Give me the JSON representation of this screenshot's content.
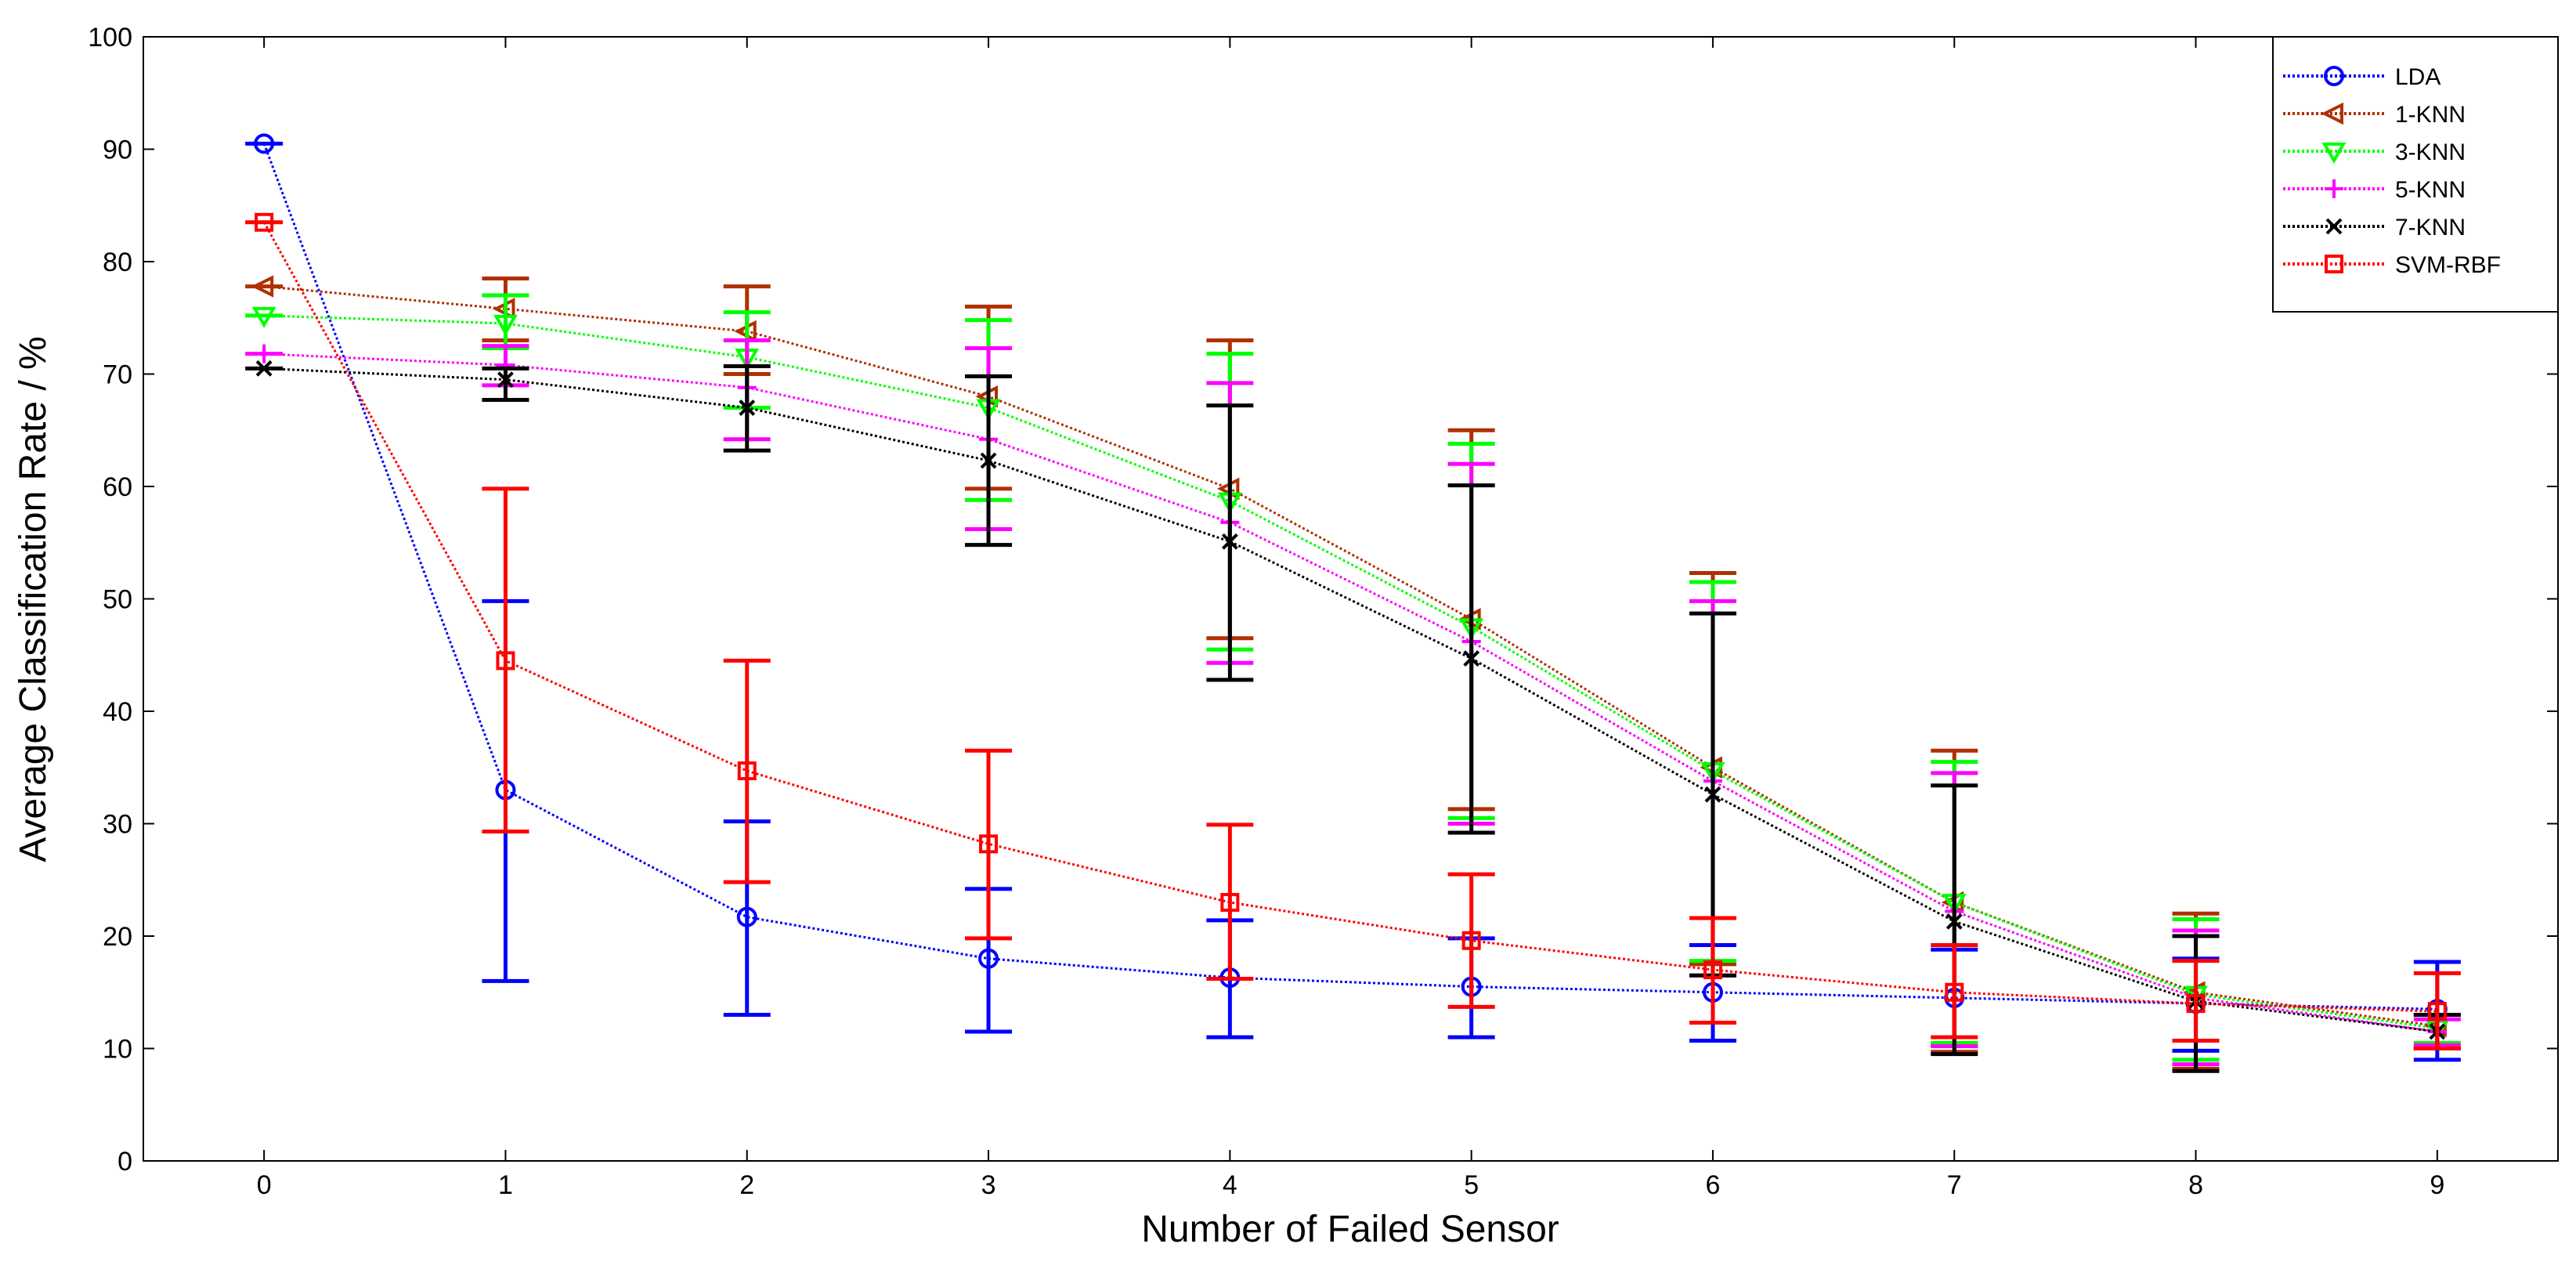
{
  "chart_data": {
    "type": "line",
    "xlabel": "Number of Failed Sensor",
    "ylabel": "Average Classification Rate / %",
    "xlim": [
      -0.5,
      9.5
    ],
    "ylim": [
      0,
      100
    ],
    "x_ticks": [
      0,
      1,
      2,
      3,
      4,
      5,
      6,
      7,
      8,
      9
    ],
    "y_ticks": [
      0,
      10,
      20,
      30,
      40,
      50,
      60,
      70,
      80,
      90,
      100
    ],
    "grid": false,
    "legend_position": "top-right",
    "x": [
      0,
      1,
      2,
      3,
      4,
      5,
      6,
      7,
      8,
      9
    ],
    "series": [
      {
        "name": "LDA",
        "color": "#0000ff",
        "marker": "circle",
        "values": [
          90.5,
          33,
          21.7,
          18,
          16.3,
          15.5,
          15,
          14.5,
          14,
          13.5
        ],
        "error_low": [
          90.5,
          16,
          13,
          11.5,
          11,
          11,
          10.7,
          10.3,
          9.8,
          9
        ],
        "error_high": [
          90.5,
          49.8,
          30.2,
          24.2,
          21.4,
          19.8,
          19.2,
          18.8,
          18,
          17.7
        ]
      },
      {
        "name": "1-KNN",
        "color": "#b03000",
        "marker": "triangle-left",
        "values": [
          77.8,
          75.8,
          73.8,
          68,
          59.8,
          48.2,
          35,
          23,
          15,
          12
        ],
        "error_low": [
          77.8,
          73,
          70,
          59.8,
          46.5,
          31.3,
          17.5,
          9.7,
          8.2,
          10
        ],
        "error_high": [
          77.8,
          78.5,
          77.8,
          76,
          73,
          65,
          52.3,
          36.5,
          22,
          13
        ]
      },
      {
        "name": "3-KNN",
        "color": "#00ff00",
        "marker": "triangle-down",
        "values": [
          75.2,
          74.5,
          71.5,
          67,
          58.7,
          47.5,
          34.7,
          23,
          14.8,
          11.8
        ],
        "error_low": [
          75.2,
          72.3,
          67,
          58.8,
          45.5,
          30.5,
          17.8,
          10.5,
          9,
          10.5
        ],
        "error_high": [
          75.2,
          77,
          75.5,
          74.8,
          71.8,
          63.8,
          51.5,
          35.5,
          21.5,
          13
        ]
      },
      {
        "name": "5-KNN",
        "color": "#ff00ff",
        "marker": "plus",
        "values": [
          71.8,
          70.8,
          68.8,
          64.2,
          56.8,
          46.2,
          33.8,
          22.2,
          14.5,
          11.5
        ],
        "error_low": [
          71.8,
          69,
          64.2,
          56.2,
          44.3,
          30,
          16.5,
          10.2,
          8.6,
          10.3
        ],
        "error_high": [
          71.8,
          72.5,
          73,
          72.3,
          69.2,
          62,
          49.8,
          34.5,
          20.5,
          12.6
        ]
      },
      {
        "name": "7-KNN",
        "color": "#000000",
        "marker": "x",
        "values": [
          70.5,
          69.5,
          67,
          62.3,
          55.1,
          44.7,
          32.6,
          21.3,
          14.2,
          11.5
        ],
        "error_low": [
          70.5,
          67.7,
          63.2,
          54.8,
          42.8,
          29.2,
          16.5,
          9.5,
          8,
          10
        ],
        "error_high": [
          70.5,
          70.5,
          70.7,
          69.8,
          67.2,
          60.1,
          48.7,
          33.4,
          20,
          13
        ]
      },
      {
        "name": "SVM-RBF",
        "color": "#ff0000",
        "marker": "square",
        "values": [
          83.5,
          44.5,
          34.7,
          28.2,
          23,
          19.6,
          17,
          15,
          14,
          13.3
        ],
        "error_low": [
          83.5,
          29.3,
          24.8,
          19.8,
          16.2,
          13.7,
          12.3,
          11,
          10.7,
          10
        ],
        "error_high": [
          83.5,
          59.8,
          44.5,
          36.5,
          29.9,
          25.5,
          21.6,
          19.2,
          17.8,
          16.7
        ]
      }
    ]
  }
}
